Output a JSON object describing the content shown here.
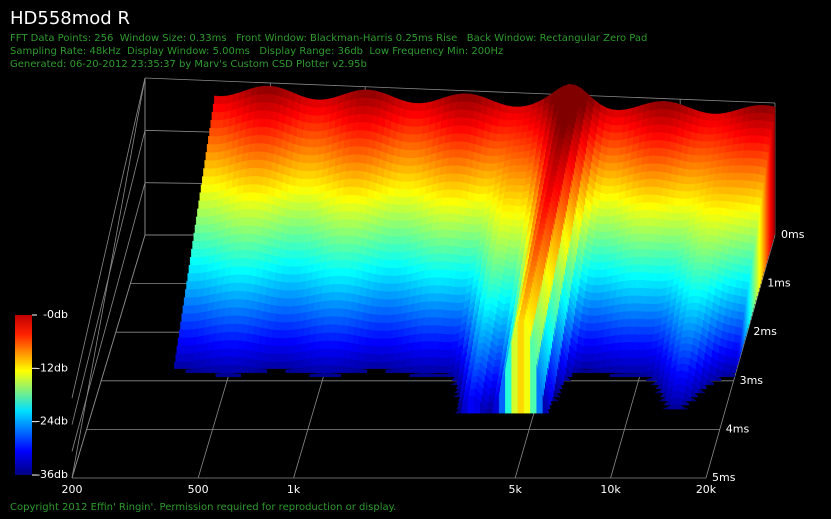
{
  "title": "HD558mod R",
  "info_lines": [
    "FFT Data Points: 256  Window Size: 0.33ms   Front Window: Blackman-Harris 0.25ms Rise   Back Window: Rectangular Zero Pad",
    "Sampling Rate: 48kHz  Display Window: 5.00ms   Display Range: 36db  Low Frequency Min: 200Hz",
    "Generated: 06-20-2012 23:35:37 by Marv's Custom CSD Plotter v2.95b"
  ],
  "footer": "Copyright 2012 Effin' Ringin'. Permission required for reproduction or display.",
  "chart_data": {
    "type": "waterfall",
    "xscale": "log",
    "colormap": "jet",
    "xlim": [
      200,
      20000
    ],
    "xticks": [
      200,
      500,
      {
        "value": 1000,
        "label": "1k"
      },
      {
        "value": 5000,
        "label": "5k"
      },
      {
        "value": 10000,
        "label": "10k"
      },
      {
        "value": 20000,
        "label": "20k"
      }
    ],
    "ylim": [
      0,
      5
    ],
    "yticks": [
      {
        "value": 0,
        "label": "0ms"
      },
      {
        "value": 1,
        "label": "1ms"
      },
      {
        "value": 2,
        "label": "2ms"
      },
      {
        "value": 3,
        "label": "3ms"
      },
      {
        "value": 4,
        "label": "4ms"
      },
      {
        "value": 5,
        "label": "5ms"
      }
    ],
    "zlim": [
      -36,
      0
    ],
    "zticks": [
      {
        "value": 0,
        "label": "-0db"
      },
      {
        "value": -12,
        "label": "-12db"
      },
      {
        "value": -24,
        "label": "-24db"
      },
      {
        "value": -36,
        "label": "-36db"
      }
    ]
  }
}
